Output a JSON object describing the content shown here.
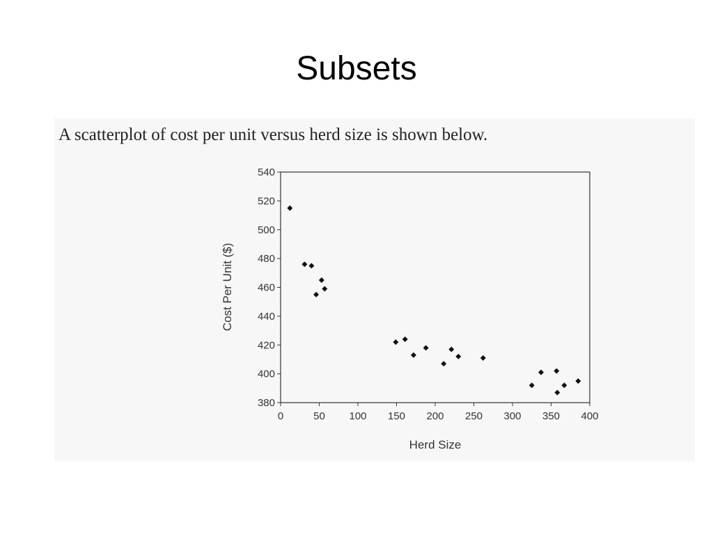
{
  "slide": {
    "title": "Subsets",
    "caption": "A scatterplot of cost per unit versus herd size is shown below."
  },
  "chart_data": {
    "type": "scatter",
    "x_label": "Herd Size",
    "y_label": "Cost Per Unit ($)",
    "x": [
      12,
      31,
      40,
      46,
      53,
      57,
      149,
      161,
      172,
      188,
      211,
      221,
      230,
      262,
      325,
      337,
      357,
      358,
      367,
      385
    ],
    "values": [
      515,
      476,
      475,
      455,
      465,
      459,
      422,
      424,
      413,
      418,
      407,
      417,
      412,
      411,
      392,
      401,
      402,
      387,
      392,
      395
    ],
    "color": "#111111",
    "xlim": [
      0,
      400
    ],
    "xticks": [
      0,
      50,
      100,
      150,
      200,
      250,
      300,
      350,
      400
    ],
    "ylim": [
      380,
      540
    ],
    "yticks": [
      380,
      400,
      420,
      440,
      460,
      480,
      500,
      520,
      540
    ]
  }
}
